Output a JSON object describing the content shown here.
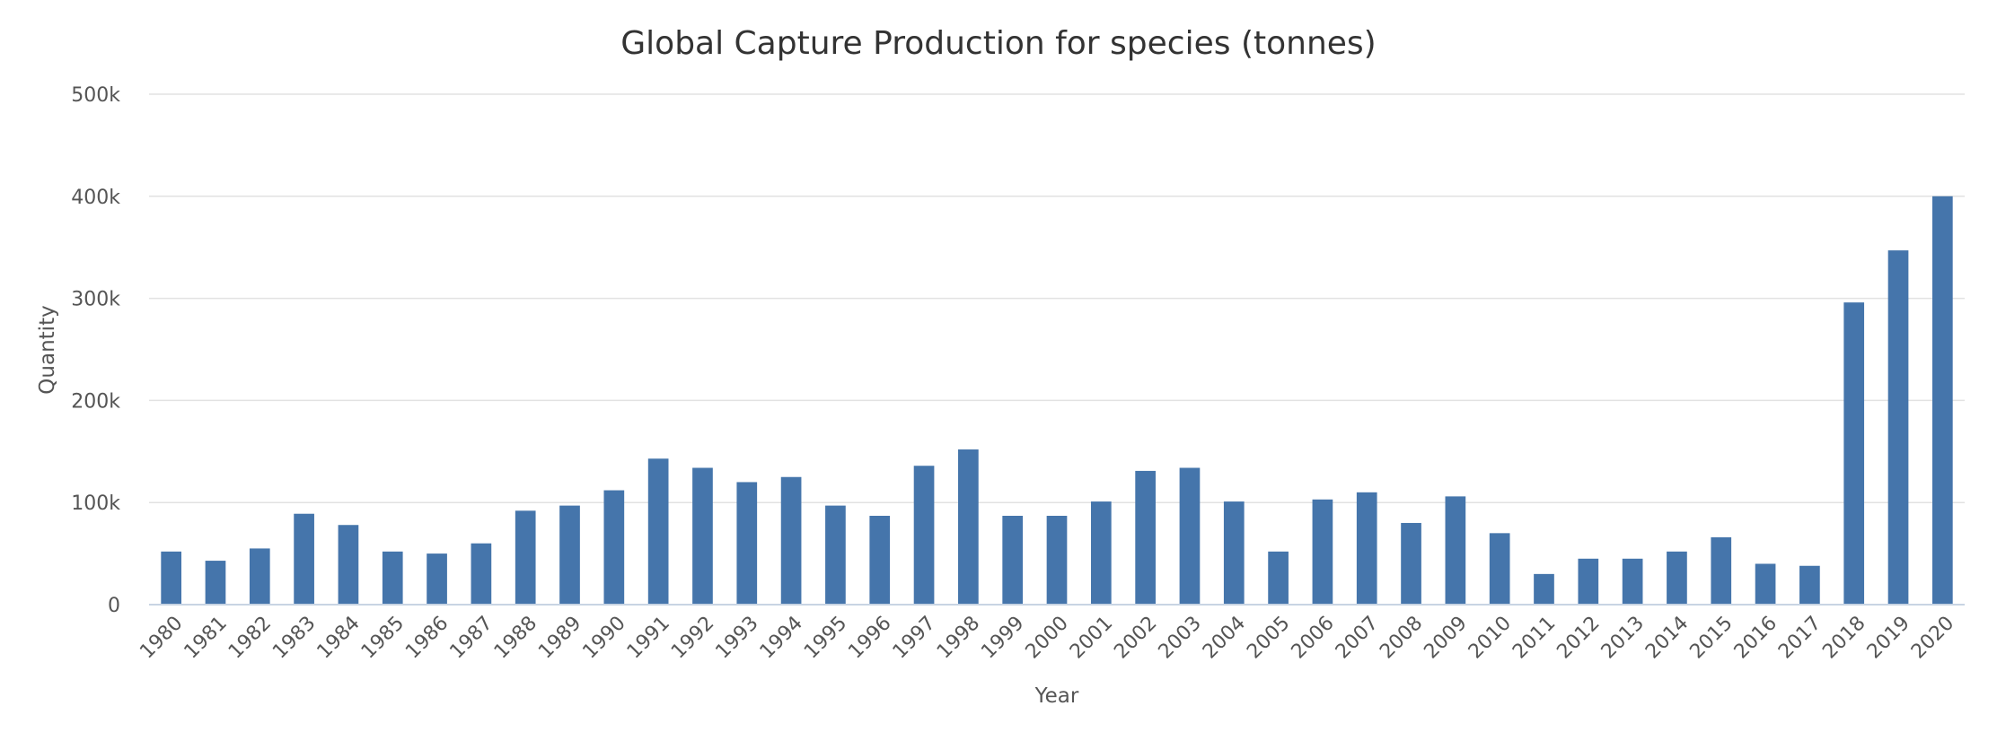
{
  "chart_data": {
    "type": "bar",
    "title": "Global Capture Production for species (tonnes)",
    "xlabel": "Year",
    "ylabel": "Quantity",
    "ylim": [
      0,
      500000
    ],
    "yticks": [
      0,
      100000,
      200000,
      300000,
      400000,
      500000
    ],
    "ytick_labels": [
      "0",
      "100k",
      "200k",
      "300k",
      "400k",
      "500k"
    ],
    "grid": true,
    "legend": "none",
    "bar_color": "#4575ab",
    "categories": [
      "1980",
      "1981",
      "1982",
      "1983",
      "1984",
      "1985",
      "1986",
      "1987",
      "1988",
      "1989",
      "1990",
      "1991",
      "1992",
      "1993",
      "1994",
      "1995",
      "1996",
      "1997",
      "1998",
      "1999",
      "2000",
      "2001",
      "2002",
      "2003",
      "2004",
      "2005",
      "2006",
      "2007",
      "2008",
      "2009",
      "2010",
      "2011",
      "2012",
      "2013",
      "2014",
      "2015",
      "2016",
      "2017",
      "2018",
      "2019",
      "2020"
    ],
    "values": [
      52000,
      43000,
      55000,
      89000,
      78000,
      52000,
      50000,
      60000,
      92000,
      97000,
      112000,
      143000,
      134000,
      120000,
      125000,
      97000,
      87000,
      136000,
      152000,
      87000,
      87000,
      101000,
      131000,
      134000,
      101000,
      52000,
      103000,
      110000,
      80000,
      106000,
      70000,
      30000,
      45000,
      45000,
      52000,
      66000,
      40000,
      38000,
      296000,
      347000,
      400000
    ]
  }
}
